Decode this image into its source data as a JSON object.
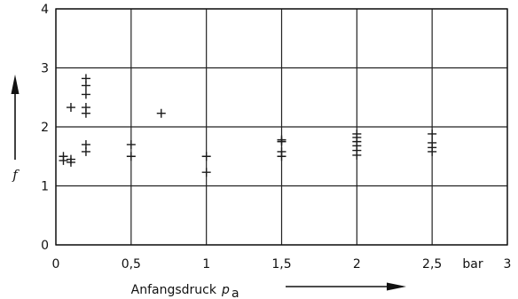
{
  "chart_data": {
    "type": "scatter",
    "marker": "plus",
    "title": "",
    "xlabel": "Anfangsdruck",
    "xlabel_symbol": "p",
    "xlabel_subscript": "a",
    "xunit": "bar",
    "ylabel": "f",
    "xlim": [
      0,
      3
    ],
    "ylim": [
      0,
      4
    ],
    "xticks": [
      {
        "value": 0,
        "label": "0"
      },
      {
        "value": 0.5,
        "label": "0,5"
      },
      {
        "value": 1,
        "label": "1"
      },
      {
        "value": 1.5,
        "label": "1,5"
      },
      {
        "value": 2,
        "label": "2"
      },
      {
        "value": 2.5,
        "label": "2,5"
      },
      {
        "value": 3,
        "label": "3"
      }
    ],
    "yticks": [
      {
        "value": 0,
        "label": "0"
      },
      {
        "value": 1,
        "label": "1"
      },
      {
        "value": 2,
        "label": "2"
      },
      {
        "value": 3,
        "label": "3"
      },
      {
        "value": 4,
        "label": "4"
      }
    ],
    "grid": true,
    "color": "#1a1a1a",
    "points": [
      {
        "x": 0.05,
        "y": 1.5
      },
      {
        "x": 0.05,
        "y": 1.43
      },
      {
        "x": 0.1,
        "y": 2.33
      },
      {
        "x": 0.1,
        "y": 1.45
      },
      {
        "x": 0.1,
        "y": 1.4
      },
      {
        "x": 0.2,
        "y": 2.82
      },
      {
        "x": 0.2,
        "y": 2.7
      },
      {
        "x": 0.2,
        "y": 2.55
      },
      {
        "x": 0.2,
        "y": 2.33
      },
      {
        "x": 0.2,
        "y": 2.23
      },
      {
        "x": 0.2,
        "y": 1.7
      },
      {
        "x": 0.2,
        "y": 1.58
      },
      {
        "x": 0.5,
        "y": 1.7
      },
      {
        "x": 0.5,
        "y": 1.5
      },
      {
        "x": 0.7,
        "y": 2.23
      },
      {
        "x": 1.0,
        "y": 1.5
      },
      {
        "x": 1.0,
        "y": 1.23
      },
      {
        "x": 1.5,
        "y": 1.78
      },
      {
        "x": 1.5,
        "y": 1.75
      },
      {
        "x": 1.5,
        "y": 1.58
      },
      {
        "x": 1.5,
        "y": 1.5
      },
      {
        "x": 2.0,
        "y": 1.88
      },
      {
        "x": 2.0,
        "y": 1.82
      },
      {
        "x": 2.0,
        "y": 1.75
      },
      {
        "x": 2.0,
        "y": 1.68
      },
      {
        "x": 2.0,
        "y": 1.6
      },
      {
        "x": 2.0,
        "y": 1.52
      },
      {
        "x": 2.5,
        "y": 1.88
      },
      {
        "x": 2.5,
        "y": 1.73
      },
      {
        "x": 2.5,
        "y": 1.65
      },
      {
        "x": 2.5,
        "y": 1.58
      }
    ]
  }
}
